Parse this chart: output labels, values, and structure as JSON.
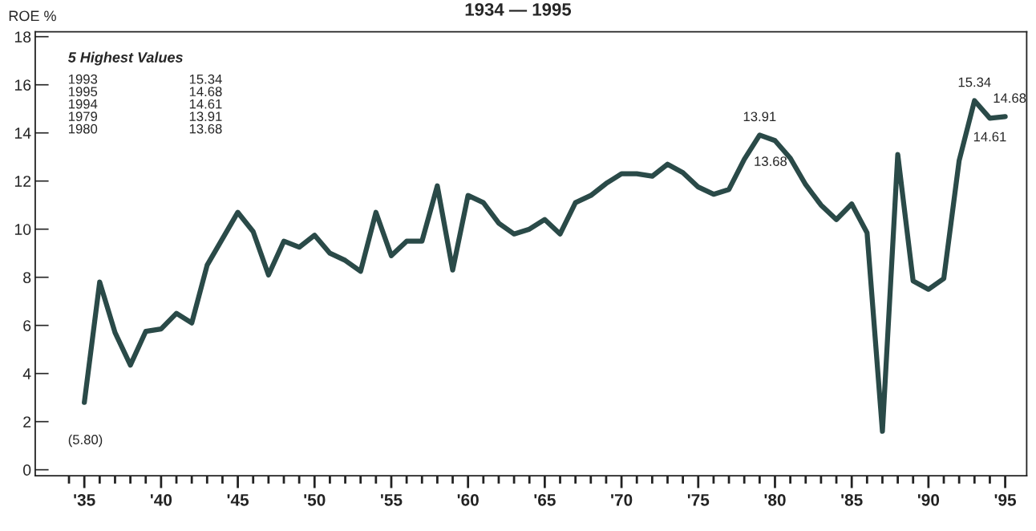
{
  "chart_data": {
    "type": "line",
    "title": "1934 — 1995",
    "ylabel": "ROE %",
    "x": [
      1935,
      1936,
      1937,
      1938,
      1939,
      1940,
      1941,
      1942,
      1943,
      1944,
      1945,
      1946,
      1947,
      1948,
      1949,
      1950,
      1951,
      1952,
      1953,
      1954,
      1955,
      1956,
      1957,
      1958,
      1959,
      1960,
      1961,
      1962,
      1963,
      1964,
      1965,
      1966,
      1967,
      1968,
      1969,
      1970,
      1971,
      1972,
      1973,
      1974,
      1975,
      1976,
      1977,
      1978,
      1979,
      1980,
      1981,
      1982,
      1983,
      1984,
      1985,
      1986,
      1987,
      1988,
      1989,
      1990,
      1991,
      1992,
      1993,
      1994,
      1995
    ],
    "series": [
      {
        "color": "#2a4a48",
        "values": [
          2.8,
          7.8,
          5.7,
          4.35,
          5.75,
          5.85,
          6.5,
          6.1,
          8.5,
          9.6,
          10.7,
          9.9,
          8.1,
          9.5,
          9.25,
          9.75,
          9.0,
          8.7,
          8.25,
          10.7,
          8.9,
          9.5,
          9.5,
          11.8,
          8.3,
          11.4,
          11.1,
          10.25,
          9.8,
          10.0,
          10.4,
          9.8,
          11.1,
          11.4,
          11.9,
          12.3,
          12.3,
          12.2,
          12.7,
          12.35,
          11.75,
          11.45,
          11.65,
          12.9,
          13.91,
          13.68,
          12.95,
          11.85,
          11.0,
          10.4,
          11.05,
          9.85,
          1.6,
          13.1,
          7.85,
          7.5,
          7.95,
          12.85,
          15.34,
          14.61,
          14.68
        ],
        "value_labels": [
          null,
          null,
          null,
          null,
          null,
          null,
          null,
          null,
          null,
          null,
          null,
          null,
          null,
          null,
          null,
          null,
          null,
          null,
          null,
          null,
          null,
          null,
          null,
          null,
          null,
          null,
          null,
          null,
          null,
          null,
          null,
          null,
          null,
          null,
          null,
          null,
          null,
          null,
          null,
          null,
          null,
          null,
          null,
          null,
          "13.91",
          "13.68",
          null,
          null,
          null,
          null,
          null,
          null,
          null,
          null,
          null,
          null,
          null,
          null,
          "15.34",
          "14.61",
          "14.68"
        ]
      }
    ],
    "xlim": [
      1931.8,
      1996.4
    ],
    "ylim": [
      -0.25,
      18.2
    ],
    "xticks": [
      {
        "value": 1934,
        "label": null
      },
      {
        "value": 1935,
        "label": "'35"
      },
      {
        "value": 1936,
        "label": null
      },
      {
        "value": 1937,
        "label": null
      },
      {
        "value": 1938,
        "label": null
      },
      {
        "value": 1939,
        "label": null
      },
      {
        "value": 1940,
        "label": "'40"
      },
      {
        "value": 1941,
        "label": null
      },
      {
        "value": 1942,
        "label": null
      },
      {
        "value": 1943,
        "label": null
      },
      {
        "value": 1944,
        "label": null
      },
      {
        "value": 1945,
        "label": "'45"
      },
      {
        "value": 1946,
        "label": null
      },
      {
        "value": 1947,
        "label": null
      },
      {
        "value": 1948,
        "label": null
      },
      {
        "value": 1949,
        "label": null
      },
      {
        "value": 1950,
        "label": "'50"
      },
      {
        "value": 1951,
        "label": null
      },
      {
        "value": 1952,
        "label": null
      },
      {
        "value": 1953,
        "label": null
      },
      {
        "value": 1954,
        "label": null
      },
      {
        "value": 1955,
        "label": "'55"
      },
      {
        "value": 1956,
        "label": null
      },
      {
        "value": 1957,
        "label": null
      },
      {
        "value": 1958,
        "label": null
      },
      {
        "value": 1959,
        "label": null
      },
      {
        "value": 1960,
        "label": "'60"
      },
      {
        "value": 1961,
        "label": null
      },
      {
        "value": 1962,
        "label": null
      },
      {
        "value": 1963,
        "label": null
      },
      {
        "value": 1964,
        "label": null
      },
      {
        "value": 1965,
        "label": "'65"
      },
      {
        "value": 1966,
        "label": null
      },
      {
        "value": 1967,
        "label": null
      },
      {
        "value": 1968,
        "label": null
      },
      {
        "value": 1969,
        "label": null
      },
      {
        "value": 1970,
        "label": "'70"
      },
      {
        "value": 1971,
        "label": null
      },
      {
        "value": 1972,
        "label": null
      },
      {
        "value": 1973,
        "label": null
      },
      {
        "value": 1974,
        "label": null
      },
      {
        "value": 1975,
        "label": "'75"
      },
      {
        "value": 1976,
        "label": null
      },
      {
        "value": 1977,
        "label": null
      },
      {
        "value": 1978,
        "label": null
      },
      {
        "value": 1979,
        "label": null
      },
      {
        "value": 1980,
        "label": "'80"
      },
      {
        "value": 1981,
        "label": null
      },
      {
        "value": 1982,
        "label": null
      },
      {
        "value": 1983,
        "label": null
      },
      {
        "value": 1984,
        "label": null
      },
      {
        "value": 1985,
        "label": "'85"
      },
      {
        "value": 1986,
        "label": null
      },
      {
        "value": 1987,
        "label": null
      },
      {
        "value": 1988,
        "label": null
      },
      {
        "value": 1989,
        "label": null
      },
      {
        "value": 1990,
        "label": "'90"
      },
      {
        "value": 1991,
        "label": null
      },
      {
        "value": 1992,
        "label": null
      },
      {
        "value": 1993,
        "label": null
      },
      {
        "value": 1994,
        "label": null
      },
      {
        "value": 1995,
        "label": "'95"
      }
    ],
    "yticks": [
      0,
      2,
      4,
      6,
      8,
      10,
      12,
      14,
      16,
      18
    ],
    "grid": false,
    "marker": "none",
    "line_style": "solid",
    "annotations": [
      "5 Highest Values",
      "1993",
      "15.34",
      "1995",
      "14.68",
      "1994",
      "14.61",
      "1979",
      "13.91",
      "1980",
      "13.68",
      "(5.80)"
    ]
  }
}
